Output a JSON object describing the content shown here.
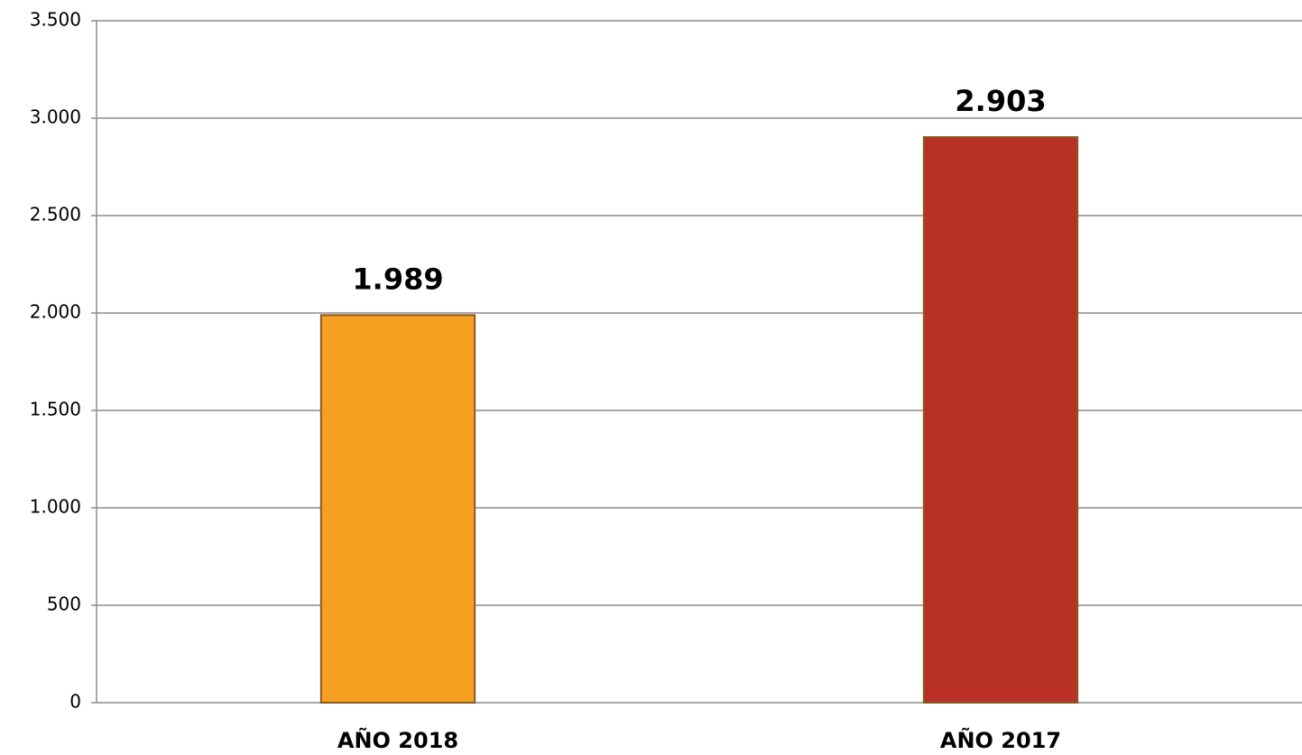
{
  "chart_data": {
    "type": "bar",
    "categories": [
      "AÑO 2018",
      "AÑO 2017"
    ],
    "values": [
      1989,
      2903
    ],
    "value_labels": [
      "1.989",
      "2.903"
    ],
    "colors": [
      "#f5a021",
      "#b83026"
    ],
    "ylim": [
      0,
      3500
    ],
    "yticks": [
      0,
      {
        "value": 500,
        "label": "500"
      },
      {
        "value": 1000,
        "label": "1.000"
      },
      {
        "value": 1500,
        "label": "1.500"
      },
      {
        "value": 2000,
        "label": "2.000"
      },
      {
        "value": 2500,
        "label": "2.500"
      },
      {
        "value": 3000,
        "label": "3.000"
      },
      {
        "value": 3500,
        "label": "3.500"
      }
    ],
    "grid": true
  }
}
